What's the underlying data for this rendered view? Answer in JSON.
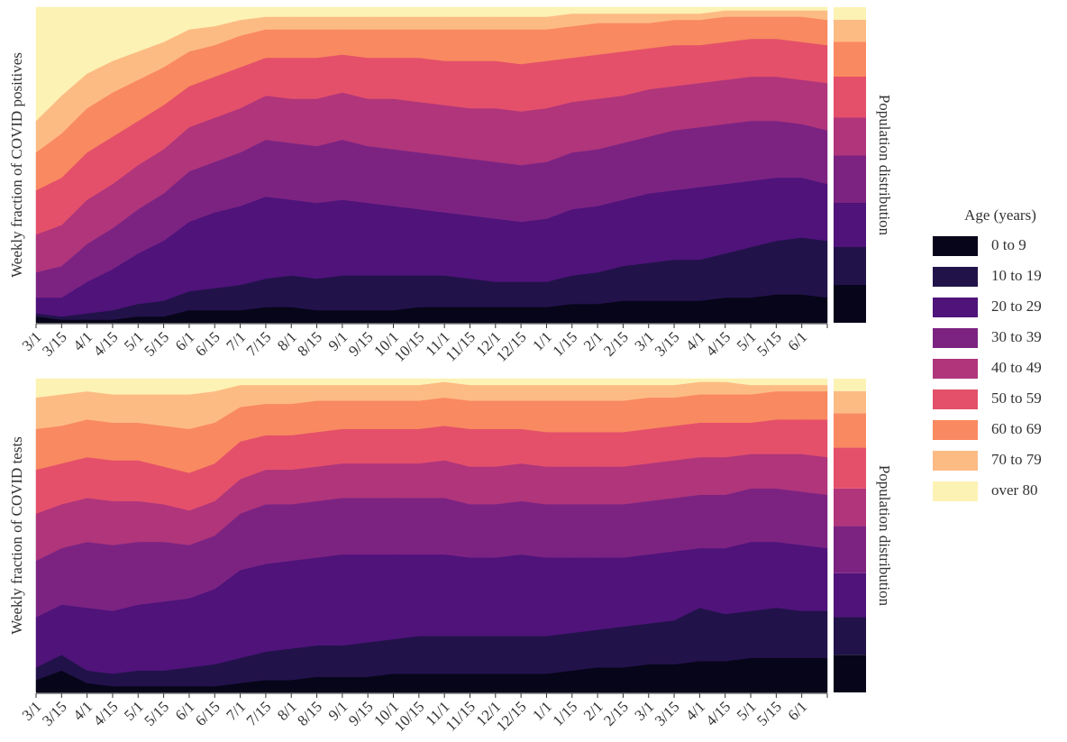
{
  "chart_data": [
    {
      "type": "area",
      "stacked": true,
      "ylabel": "Weekly fraction of COVID positives",
      "ylim": [
        0,
        1
      ],
      "categories": [
        "3/1",
        "3/15",
        "4/1",
        "4/15",
        "5/1",
        "5/15",
        "6/1",
        "6/15",
        "7/1",
        "7/15",
        "8/1",
        "8/15",
        "9/1",
        "9/15",
        "10/1",
        "10/15",
        "11/1",
        "11/15",
        "12/1",
        "12/15",
        "1/1",
        "1/15",
        "2/1",
        "2/15",
        "3/1",
        "3/15",
        "4/1",
        "4/15",
        "5/1",
        "5/15",
        "6/1",
        null
      ],
      "series": [
        {
          "name": "0 to 9",
          "color": "#07051a",
          "values": [
            0.02,
            0.01,
            0.01,
            0.01,
            0.02,
            0.02,
            0.04,
            0.04,
            0.04,
            0.05,
            0.05,
            0.04,
            0.04,
            0.04,
            0.04,
            0.05,
            0.05,
            0.05,
            0.05,
            0.05,
            0.05,
            0.06,
            0.06,
            0.07,
            0.07,
            0.07,
            0.07,
            0.08,
            0.08,
            0.09,
            0.09,
            0.08
          ]
        },
        {
          "name": "10 to 19",
          "color": "#22124a",
          "values": [
            0.01,
            0.01,
            0.02,
            0.03,
            0.04,
            0.05,
            0.06,
            0.07,
            0.08,
            0.09,
            0.1,
            0.1,
            0.11,
            0.11,
            0.11,
            0.1,
            0.1,
            0.09,
            0.08,
            0.08,
            0.08,
            0.09,
            0.1,
            0.11,
            0.12,
            0.13,
            0.13,
            0.14,
            0.16,
            0.17,
            0.18,
            0.18
          ]
        },
        {
          "name": "20 to 29",
          "color": "#4f137a",
          "values": [
            0.05,
            0.06,
            0.1,
            0.13,
            0.16,
            0.19,
            0.22,
            0.24,
            0.25,
            0.26,
            0.24,
            0.24,
            0.24,
            0.23,
            0.22,
            0.21,
            0.2,
            0.2,
            0.2,
            0.19,
            0.2,
            0.21,
            0.21,
            0.21,
            0.22,
            0.22,
            0.23,
            0.22,
            0.21,
            0.2,
            0.19,
            0.18
          ]
        },
        {
          "name": "30 to 39",
          "color": "#7c2382",
          "values": [
            0.08,
            0.1,
            0.12,
            0.13,
            0.14,
            0.15,
            0.16,
            0.16,
            0.17,
            0.18,
            0.18,
            0.18,
            0.19,
            0.18,
            0.18,
            0.18,
            0.18,
            0.18,
            0.18,
            0.18,
            0.18,
            0.18,
            0.18,
            0.18,
            0.18,
            0.19,
            0.19,
            0.19,
            0.19,
            0.18,
            0.17,
            0.17
          ]
        },
        {
          "name": "40 to 49",
          "color": "#b0357b",
          "values": [
            0.12,
            0.13,
            0.14,
            0.14,
            0.14,
            0.14,
            0.14,
            0.14,
            0.14,
            0.14,
            0.14,
            0.15,
            0.15,
            0.15,
            0.16,
            0.16,
            0.16,
            0.16,
            0.17,
            0.17,
            0.17,
            0.16,
            0.16,
            0.15,
            0.15,
            0.14,
            0.14,
            0.14,
            0.14,
            0.14,
            0.14,
            0.15
          ]
        },
        {
          "name": "50 to 59",
          "color": "#e4506a",
          "values": [
            0.14,
            0.15,
            0.15,
            0.15,
            0.14,
            0.14,
            0.13,
            0.13,
            0.13,
            0.12,
            0.13,
            0.13,
            0.12,
            0.13,
            0.13,
            0.14,
            0.14,
            0.15,
            0.15,
            0.15,
            0.15,
            0.14,
            0.14,
            0.14,
            0.13,
            0.13,
            0.12,
            0.12,
            0.12,
            0.12,
            0.12,
            0.12
          ]
        },
        {
          "name": "60 to 69",
          "color": "#f98960",
          "values": [
            0.12,
            0.14,
            0.14,
            0.14,
            0.13,
            0.12,
            0.11,
            0.1,
            0.1,
            0.09,
            0.09,
            0.09,
            0.08,
            0.09,
            0.09,
            0.09,
            0.1,
            0.1,
            0.1,
            0.11,
            0.1,
            0.1,
            0.1,
            0.09,
            0.08,
            0.08,
            0.08,
            0.08,
            0.07,
            0.07,
            0.08,
            0.08
          ]
        },
        {
          "name": "70 to 79",
          "color": "#fdbb84",
          "values": [
            0.1,
            0.12,
            0.11,
            0.1,
            0.09,
            0.08,
            0.07,
            0.06,
            0.05,
            0.04,
            0.04,
            0.04,
            0.04,
            0.04,
            0.04,
            0.04,
            0.04,
            0.04,
            0.04,
            0.04,
            0.04,
            0.04,
            0.03,
            0.03,
            0.03,
            0.02,
            0.02,
            0.02,
            0.02,
            0.02,
            0.02,
            0.03
          ]
        },
        {
          "name": "over 80",
          "color": "#fcf2b4",
          "values": [
            0.36,
            0.28,
            0.21,
            0.17,
            0.14,
            0.11,
            0.07,
            0.06,
            0.04,
            0.03,
            0.03,
            0.03,
            0.03,
            0.03,
            0.03,
            0.03,
            0.03,
            0.03,
            0.03,
            0.03,
            0.03,
            0.02,
            0.02,
            0.02,
            0.02,
            0.02,
            0.02,
            0.01,
            0.01,
            0.01,
            0.01,
            0.01
          ]
        }
      ],
      "population": {
        "label": "Population distribution",
        "values": [
          0.12,
          0.12,
          0.14,
          0.15,
          0.12,
          0.13,
          0.11,
          0.07,
          0.04
        ]
      }
    },
    {
      "type": "area",
      "stacked": true,
      "ylabel": "Weekly fraction of COVID tests",
      "ylim": [
        0,
        1
      ],
      "categories": [
        "3/1",
        "3/15",
        "4/1",
        "4/15",
        "5/1",
        "5/15",
        "6/1",
        "6/15",
        "7/1",
        "7/15",
        "8/1",
        "8/15",
        "9/1",
        "9/15",
        "10/1",
        "10/15",
        "11/1",
        "11/15",
        "12/1",
        "12/15",
        "1/1",
        "1/15",
        "2/1",
        "2/15",
        "3/1",
        "3/15",
        "4/1",
        "4/15",
        "5/1",
        "5/15",
        "6/1",
        null
      ],
      "series": [
        {
          "color": "#07051a",
          "values": [
            0.04,
            0.07,
            0.03,
            0.02,
            0.02,
            0.02,
            0.02,
            0.02,
            0.03,
            0.04,
            0.04,
            0.05,
            0.05,
            0.05,
            0.06,
            0.06,
            0.06,
            0.06,
            0.06,
            0.06,
            0.06,
            0.07,
            0.08,
            0.08,
            0.09,
            0.09,
            0.1,
            0.1,
            0.11,
            0.11,
            0.11,
            0.11
          ]
        },
        {
          "color": "#22124a",
          "values": [
            0.04,
            0.05,
            0.04,
            0.04,
            0.05,
            0.05,
            0.06,
            0.07,
            0.08,
            0.09,
            0.1,
            0.1,
            0.1,
            0.11,
            0.11,
            0.12,
            0.12,
            0.12,
            0.12,
            0.12,
            0.12,
            0.12,
            0.12,
            0.13,
            0.13,
            0.14,
            0.17,
            0.15,
            0.15,
            0.16,
            0.15,
            0.15
          ]
        },
        {
          "color": "#4f137a",
          "values": [
            0.16,
            0.16,
            0.2,
            0.2,
            0.21,
            0.22,
            0.22,
            0.24,
            0.28,
            0.28,
            0.28,
            0.28,
            0.29,
            0.28,
            0.27,
            0.26,
            0.26,
            0.25,
            0.25,
            0.26,
            0.25,
            0.24,
            0.23,
            0.22,
            0.22,
            0.22,
            0.19,
            0.21,
            0.22,
            0.21,
            0.21,
            0.2
          ]
        },
        {
          "color": "#7c2382",
          "values": [
            0.18,
            0.18,
            0.21,
            0.21,
            0.2,
            0.19,
            0.17,
            0.17,
            0.18,
            0.19,
            0.18,
            0.18,
            0.18,
            0.18,
            0.18,
            0.18,
            0.18,
            0.17,
            0.17,
            0.17,
            0.17,
            0.17,
            0.17,
            0.17,
            0.17,
            0.17,
            0.17,
            0.17,
            0.17,
            0.17,
            0.17,
            0.17
          ]
        },
        {
          "color": "#b0357b",
          "values": [
            0.15,
            0.14,
            0.14,
            0.14,
            0.13,
            0.12,
            0.11,
            0.11,
            0.11,
            0.11,
            0.11,
            0.11,
            0.11,
            0.11,
            0.11,
            0.11,
            0.12,
            0.12,
            0.12,
            0.12,
            0.12,
            0.12,
            0.12,
            0.12,
            0.12,
            0.12,
            0.12,
            0.12,
            0.11,
            0.11,
            0.12,
            0.12
          ]
        },
        {
          "color": "#e4506a",
          "values": [
            0.14,
            0.13,
            0.13,
            0.13,
            0.13,
            0.12,
            0.12,
            0.12,
            0.12,
            0.11,
            0.11,
            0.11,
            0.11,
            0.11,
            0.11,
            0.11,
            0.11,
            0.12,
            0.12,
            0.11,
            0.11,
            0.11,
            0.11,
            0.11,
            0.11,
            0.11,
            0.11,
            0.11,
            0.1,
            0.11,
            0.11,
            0.12
          ]
        },
        {
          "color": "#f98960",
          "values": [
            0.13,
            0.12,
            0.12,
            0.12,
            0.12,
            0.13,
            0.14,
            0.13,
            0.11,
            0.1,
            0.1,
            0.1,
            0.09,
            0.09,
            0.09,
            0.09,
            0.09,
            0.09,
            0.09,
            0.09,
            0.1,
            0.1,
            0.1,
            0.1,
            0.1,
            0.09,
            0.09,
            0.09,
            0.09,
            0.09,
            0.09,
            0.09
          ]
        },
        {
          "color": "#fdbb84",
          "values": [
            0.1,
            0.1,
            0.09,
            0.09,
            0.09,
            0.1,
            0.11,
            0.1,
            0.07,
            0.06,
            0.06,
            0.05,
            0.05,
            0.05,
            0.05,
            0.05,
            0.05,
            0.05,
            0.05,
            0.05,
            0.05,
            0.05,
            0.05,
            0.05,
            0.04,
            0.04,
            0.04,
            0.04,
            0.03,
            0.02,
            0.02,
            0.02
          ]
        },
        {
          "color": "#fcf2b4",
          "values": [
            0.06,
            0.05,
            0.04,
            0.05,
            0.05,
            0.05,
            0.05,
            0.04,
            0.02,
            0.02,
            0.02,
            0.02,
            0.02,
            0.02,
            0.02,
            0.02,
            0.01,
            0.02,
            0.02,
            0.02,
            0.02,
            0.02,
            0.02,
            0.02,
            0.02,
            0.02,
            0.01,
            0.01,
            0.02,
            0.02,
            0.02,
            0.02
          ]
        }
      ],
      "population": {
        "label": "Population distribution",
        "values": [
          0.12,
          0.12,
          0.14,
          0.15,
          0.12,
          0.13,
          0.11,
          0.07,
          0.04
        ]
      }
    }
  ],
  "legend": {
    "title": "Age (years)"
  }
}
